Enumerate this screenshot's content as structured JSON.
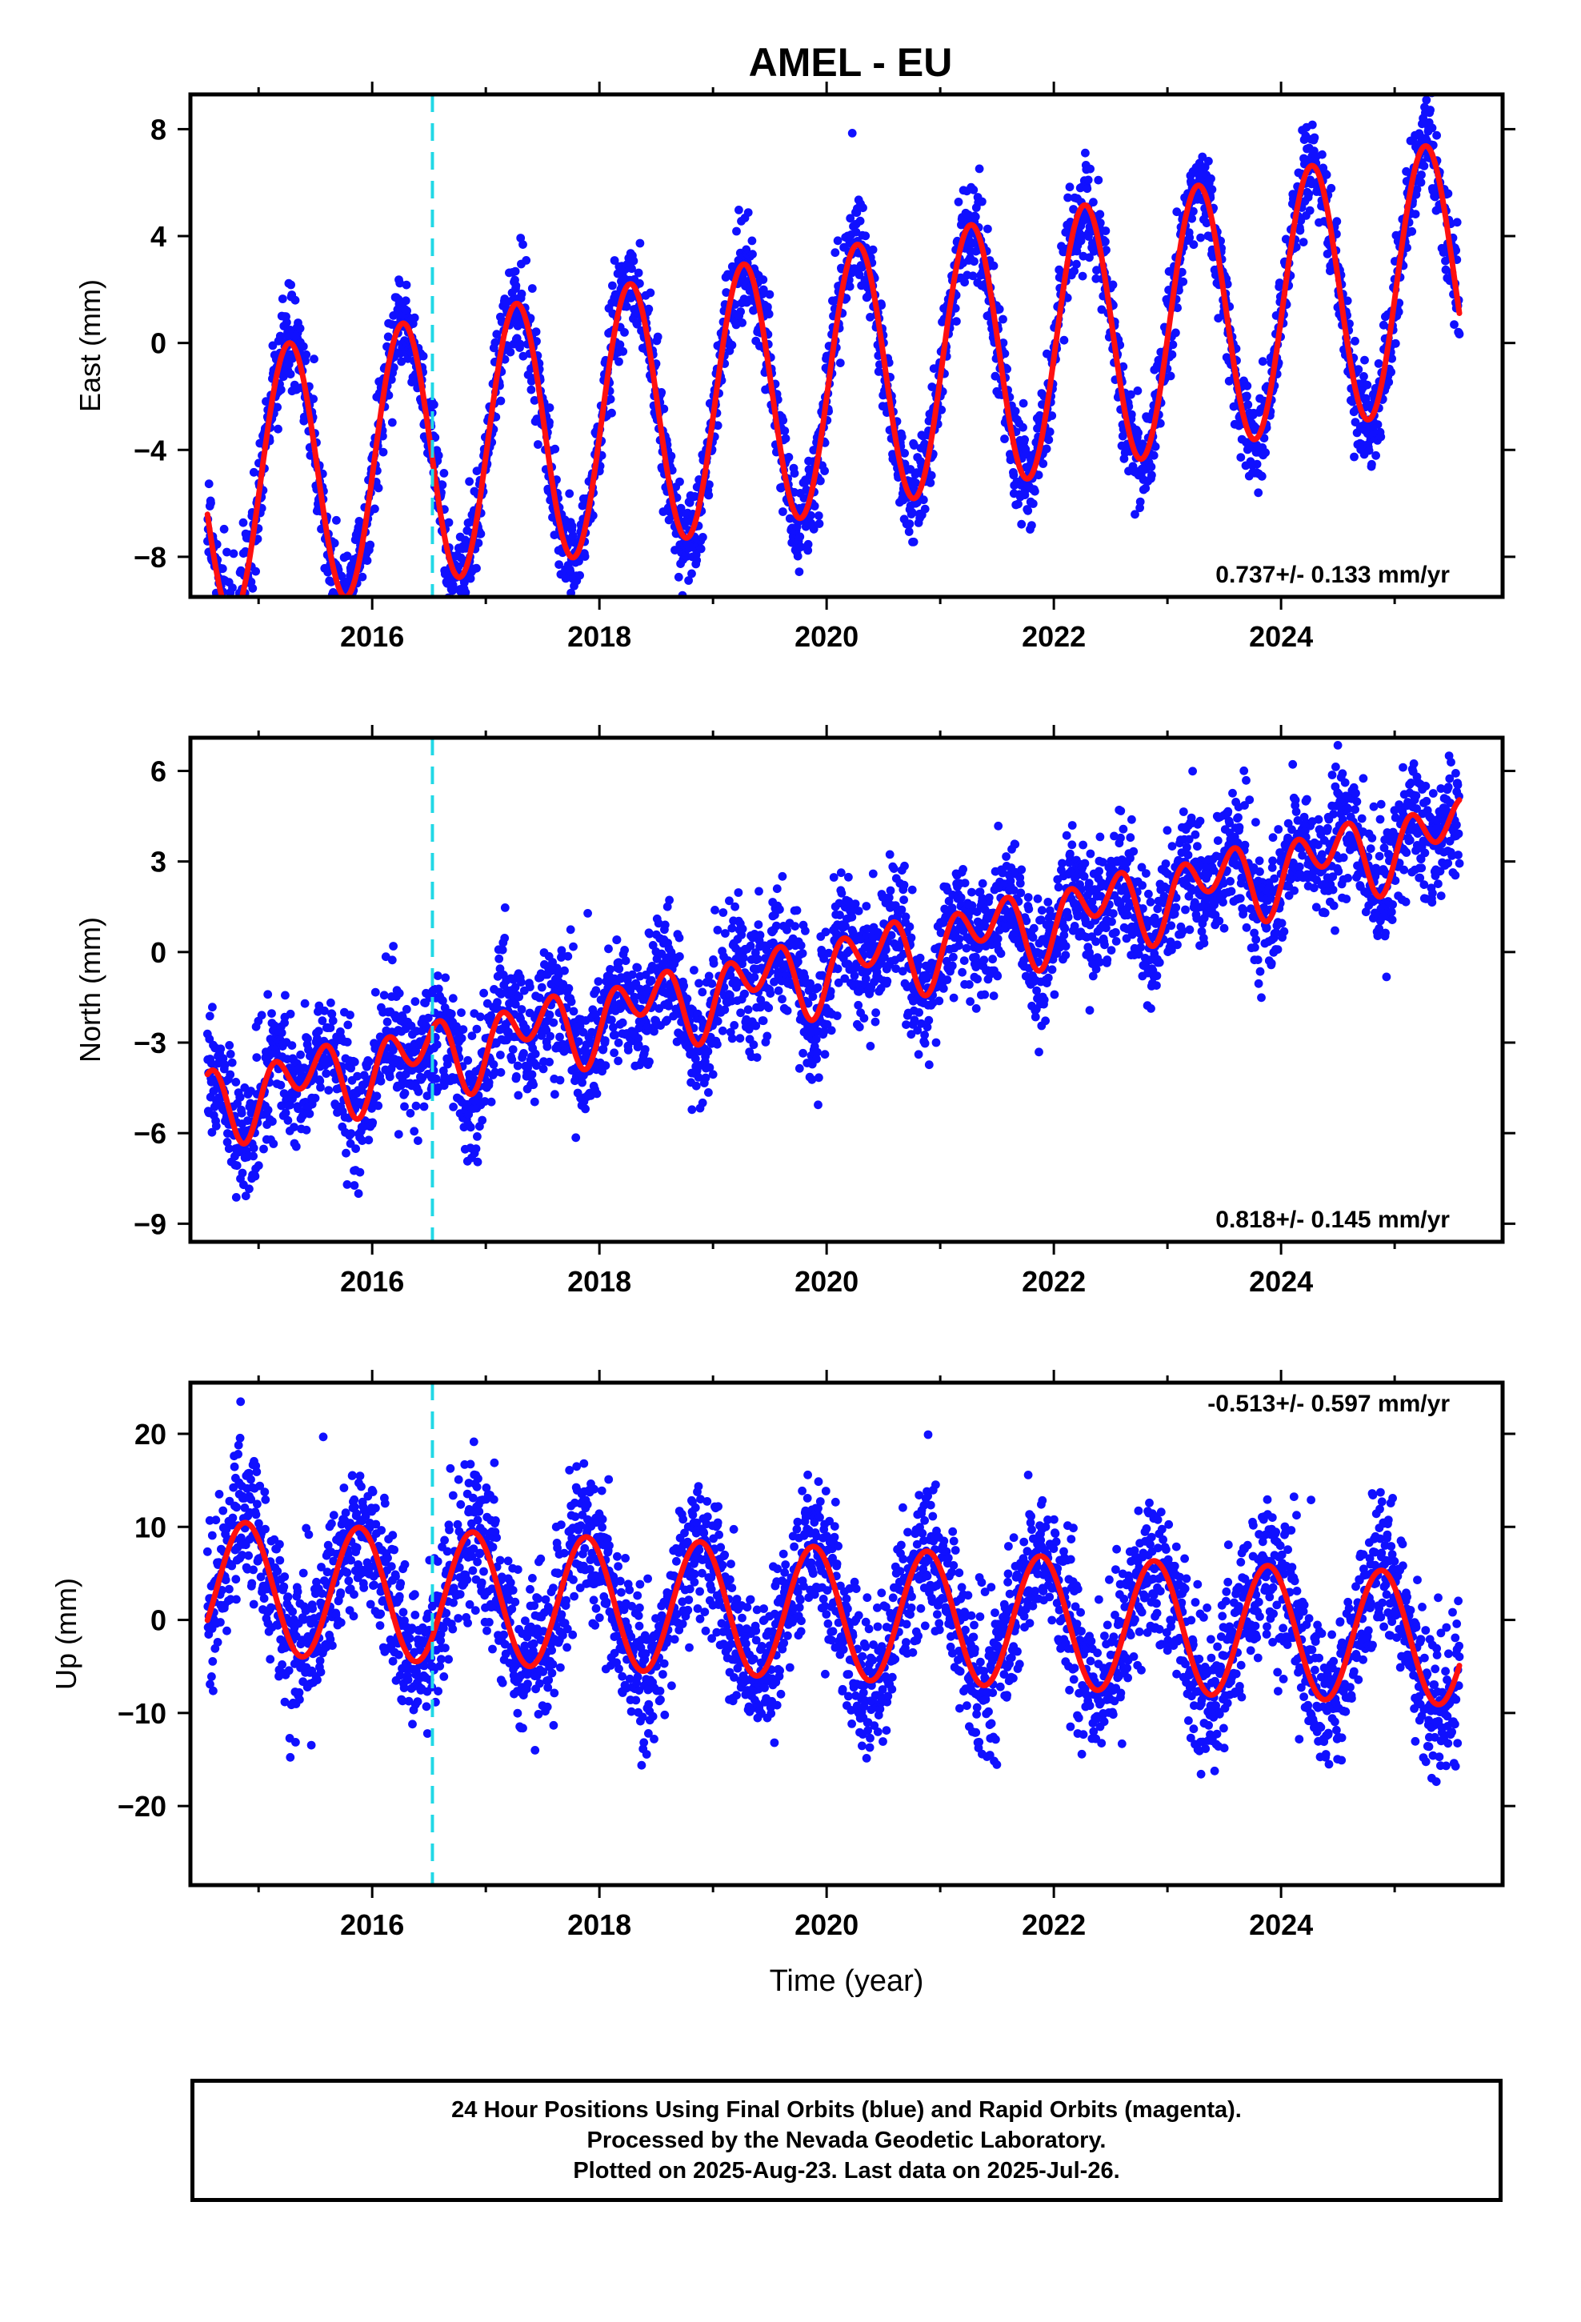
{
  "figure": {
    "title": "AMEL - EU",
    "footer": {
      "line1": "24 Hour Positions Using Final Orbits (blue) and Rapid Orbits (magenta).",
      "line2": "Processed by the Nevada Geodetic Laboratory.",
      "line3": "Plotted on 2025-Aug-23. Last data on 2025-Jul-26."
    },
    "colors": {
      "final_orbit_points": "#1010ff",
      "fit_curve": "#ff1010",
      "event_line": "#22d8e6",
      "frame": "#000000"
    }
  },
  "chart_data": [
    {
      "type": "scatter",
      "panel": "east",
      "ylabel": "East (mm)",
      "xlabel": "",
      "xlim": [
        2014.4,
        2025.95
      ],
      "ylim": [
        -9.5,
        9.3
      ],
      "xticks": [
        2016,
        2018,
        2020,
        2022,
        2024
      ],
      "yticks": [
        -8,
        -4,
        0,
        4,
        8
      ],
      "grid": false,
      "rate_text": "0.737+/- 0.133 mm/yr",
      "rate_position": "bottom-right",
      "event_line_x": 2016.53,
      "data_range": [
        2014.55,
        2025.57
      ],
      "model": {
        "t0": 2020.0,
        "offset": -1.45,
        "velocity": 0.737,
        "annual_cos": -0.6,
        "annual_sin": 4.9,
        "semiannual_cos": 0.0,
        "semiannual_sin": 0.0
      },
      "series": [
        {
          "name": "Final Orbits (blue)",
          "kind": "points",
          "noise_sd": 0.9,
          "n_points": 3300
        },
        {
          "kind": "fit_curve"
        }
      ]
    },
    {
      "type": "scatter",
      "panel": "north",
      "ylabel": "North (mm)",
      "xlabel": "",
      "xlim": [
        2014.4,
        2025.95
      ],
      "ylim": [
        -9.6,
        7.1
      ],
      "xticks": [
        2016,
        2018,
        2020,
        2022,
        2024
      ],
      "yticks": [
        -9,
        -6,
        -3,
        0,
        3,
        6
      ],
      "grid": false,
      "rate_text": "0.818+/- 0.145 mm/yr",
      "rate_position": "bottom-right",
      "event_line_x": 2016.53,
      "data_range": [
        2014.55,
        2025.57
      ],
      "model": {
        "t0": 2020.0,
        "offset": -0.55,
        "velocity": 0.818,
        "annual_cos": -0.55,
        "annual_sin": 0.45,
        "semiannual_cos": 0.05,
        "semiannual_sin": 0.9
      },
      "series": [
        {
          "name": "Final Orbits (blue)",
          "kind": "points",
          "noise_sd": 1.05,
          "n_points": 3300
        },
        {
          "kind": "fit_curve"
        }
      ]
    },
    {
      "type": "scatter",
      "panel": "up",
      "ylabel": "Up (mm)",
      "xlabel": "Time (year)",
      "xlim": [
        2014.4,
        2025.95
      ],
      "ylim": [
        -28.5,
        25.5
      ],
      "xticks": [
        2016,
        2018,
        2020,
        2022,
        2024
      ],
      "yticks": [
        -20,
        -10,
        0,
        10,
        20
      ],
      "grid": false,
      "rate_text": "-0.513+/- 0.597 mm/yr",
      "rate_position": "top-right",
      "event_line_x": 2016.53,
      "data_range": [
        2014.55,
        2025.57
      ],
      "model": {
        "t0": 2020.0,
        "offset": 0.75,
        "velocity": -0.513,
        "annual_cos": 5.3,
        "annual_sin": -4.7,
        "semiannual_cos": 0.0,
        "semiannual_sin": 0.0
      },
      "series": [
        {
          "name": "Final Orbits (blue)",
          "kind": "points",
          "noise_sd": 4.0,
          "n_points": 3300
        },
        {
          "kind": "fit_curve"
        }
      ]
    }
  ]
}
